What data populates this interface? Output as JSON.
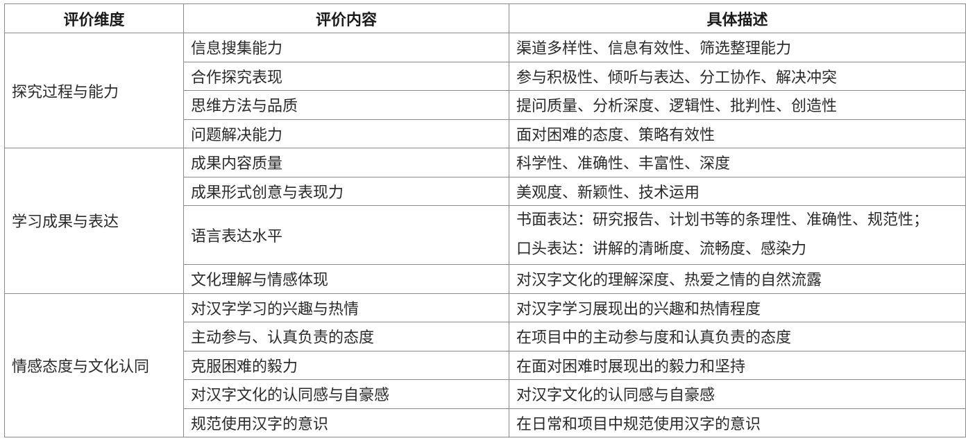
{
  "headers": [
    "评价维度",
    "评价内容",
    "具体描述"
  ],
  "groups": [
    {
      "dimension": "探究过程与能力",
      "rows": [
        {
          "content": "信息搜集能力",
          "desc": [
            "渠道多样性、信息有效性、筛选整理能力"
          ]
        },
        {
          "content": "合作探究表现",
          "desc": [
            "参与积极性、倾听与表达、分工协作、解决冲突"
          ]
        },
        {
          "content": "思维方法与品质",
          "desc": [
            "提问质量、分析深度、逻辑性、批判性、创造性"
          ]
        },
        {
          "content": "问题解决能力",
          "desc": [
            "面对困难的态度、策略有效性"
          ]
        }
      ]
    },
    {
      "dimension": "学习成果与表达",
      "rows": [
        {
          "content": "成果内容质量",
          "desc": [
            "科学性、准确性、丰富性、深度"
          ]
        },
        {
          "content": "成果形式创意与表现力",
          "desc": [
            "美观度、新颖性、技术运用"
          ]
        },
        {
          "content": "语言表达水平",
          "desc": [
            "书面表达：研究报告、计划书等的条理性、准确性、规范性；",
            "口头表达：讲解的清晰度、流畅度、感染力"
          ]
        },
        {
          "content": "文化理解与情感体现",
          "desc": [
            "对汉字文化的理解深度、热爱之情的自然流露"
          ]
        }
      ]
    },
    {
      "dimension": "情感态度与文化认同",
      "rows": [
        {
          "content": "对汉字学习的兴趣与热情",
          "desc": [
            "对汉字学习展现出的兴趣和热情程度"
          ]
        },
        {
          "content": "主动参与、认真负责的态度",
          "desc": [
            "在项目中的主动参与度和认真负责的态度"
          ]
        },
        {
          "content": "克服困难的毅力",
          "desc": [
            "在面对困难时展现出的毅力和坚持"
          ]
        },
        {
          "content": "对汉字文化的认同感与自豪感",
          "desc": [
            "对汉字文化的认同感与自豪感"
          ]
        },
        {
          "content": "规范使用汉字的意识",
          "desc": [
            "在日常和项目中规范使用汉字的意识"
          ]
        }
      ]
    }
  ]
}
